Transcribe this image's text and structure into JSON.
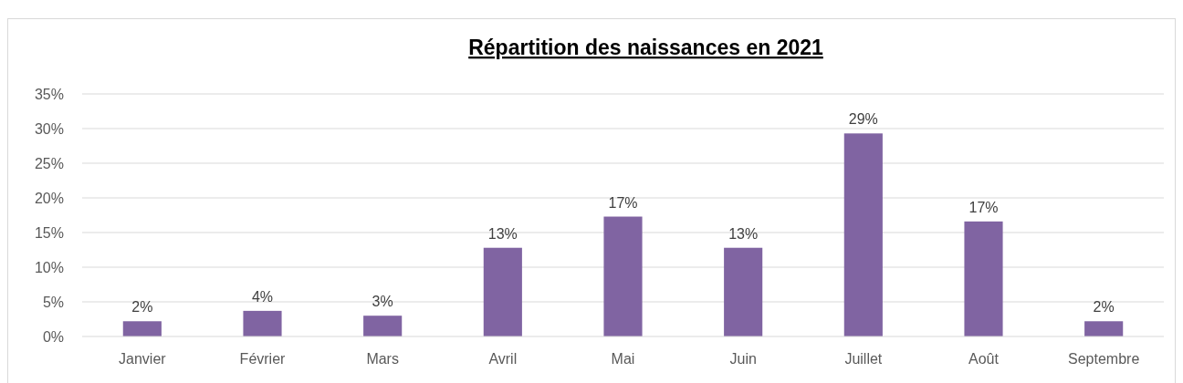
{
  "chart_data": {
    "type": "bar",
    "title": "Répartition des naissances en 2021",
    "categories": [
      "Janvier",
      "Février",
      "Mars",
      "Avril",
      "Mai",
      "Juin",
      "Juillet",
      "Août",
      "Septembre"
    ],
    "values": [
      2.2,
      3.7,
      3.0,
      12.8,
      17.3,
      12.8,
      29.3,
      16.6,
      2.2
    ],
    "value_labels": [
      "2%",
      "4%",
      "3%",
      "13%",
      "17%",
      "13%",
      "29%",
      "17%",
      "2%"
    ],
    "color": "#8064a2",
    "ylim": [
      0,
      35
    ],
    "yticks": [
      {
        "value": 0,
        "label": "0%"
      },
      {
        "value": 5,
        "label": "5%"
      },
      {
        "value": 10,
        "label": "10%"
      },
      {
        "value": 15,
        "label": "15%"
      },
      {
        "value": 20,
        "label": "20%"
      },
      {
        "value": 25,
        "label": "25%"
      },
      {
        "value": 30,
        "label": "30%"
      },
      {
        "value": 35,
        "label": "35%"
      }
    ],
    "grid": "y"
  }
}
